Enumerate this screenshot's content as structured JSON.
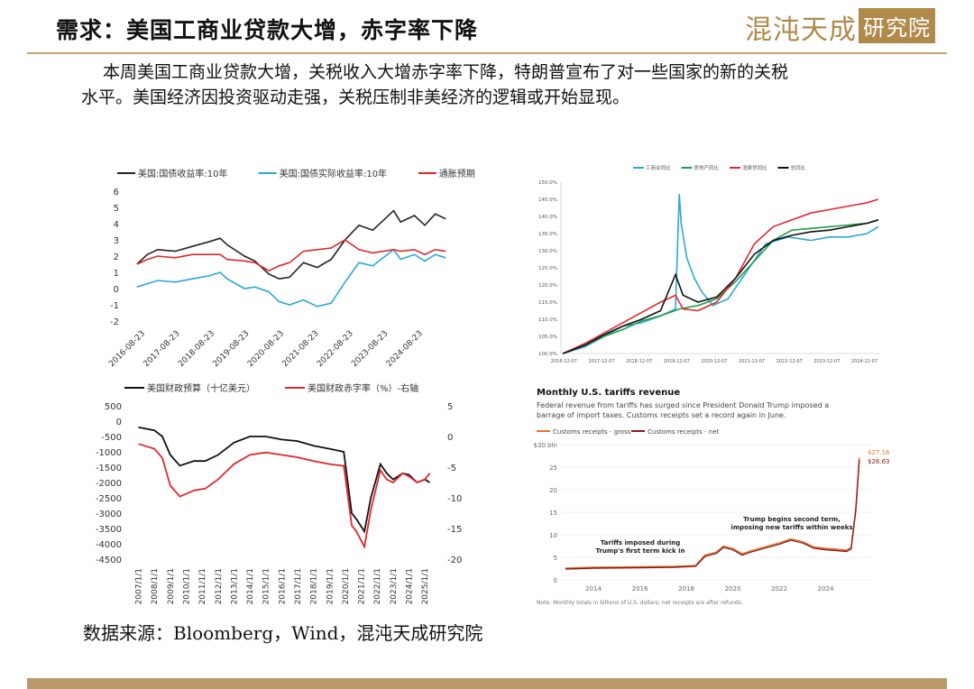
{
  "header": {
    "title": "需求：美国工商业贷款大增，赤字率下降",
    "logo_text": "混沌天成",
    "logo_box": "研究院"
  },
  "body": {
    "line1": "本周美国工商业贷款大增，关税收入大增赤字率下降，特朗普宣布了对一些国家的新的关税",
    "line2": "水平。美国经济因投资驱动走强，关税压制非美经济的逻辑或开始显现。"
  },
  "source": "数据来源：Bloomberg，Wind，混沌天成研究院",
  "colors": {
    "accent_gold": "#c4a46a",
    "footer": "#b99a6a"
  },
  "chart_data": [
    {
      "id": "yields",
      "type": "line",
      "legend": [
        "美国:国债收益率:10年",
        "美国:国债实际收益率:10年",
        "通胀预期"
      ],
      "colors": [
        "#222222",
        "#2aa7d8",
        "#e0282c"
      ],
      "x_ticks": [
        "2016-08-23",
        "2017-08-23",
        "2018-08-23",
        "2019-08-23",
        "2020-08-23",
        "2021-08-23",
        "2022-08-23",
        "2023-08-23",
        "2024-08-23"
      ],
      "y_ticks": [
        "6",
        "5",
        "4",
        "3",
        "2",
        "1",
        "0",
        "-1",
        "-2"
      ],
      "ylim": [
        -2,
        6
      ],
      "series": [
        {
          "name": "美国:国债收益率:10年",
          "x": [
            2016.4,
            2016.7,
            2017.0,
            2017.5,
            2018.0,
            2018.5,
            2018.8,
            2019.0,
            2019.5,
            2019.8,
            2020.2,
            2020.5,
            2020.8,
            2021.2,
            2021.6,
            2022.0,
            2022.4,
            2022.8,
            2023.2,
            2023.8,
            2024.0,
            2024.4,
            2024.7,
            2025.0,
            2025.3
          ],
          "y": [
            1.5,
            2.1,
            2.4,
            2.3,
            2.6,
            2.9,
            3.1,
            2.7,
            2.0,
            1.7,
            0.9,
            0.6,
            0.7,
            1.6,
            1.3,
            1.8,
            3.0,
            3.9,
            3.6,
            4.8,
            4.1,
            4.5,
            3.9,
            4.6,
            4.3
          ]
        },
        {
          "name": "美国:国债实际收益率:10年",
          "x": [
            2016.4,
            2016.7,
            2017.0,
            2017.5,
            2018.0,
            2018.5,
            2018.8,
            2019.0,
            2019.5,
            2019.8,
            2020.2,
            2020.5,
            2020.8,
            2021.2,
            2021.6,
            2022.0,
            2022.4,
            2022.8,
            2023.2,
            2023.8,
            2024.0,
            2024.4,
            2024.7,
            2025.0,
            2025.3
          ],
          "y": [
            0.1,
            0.3,
            0.5,
            0.4,
            0.6,
            0.8,
            1.0,
            0.6,
            0.0,
            0.1,
            -0.2,
            -0.8,
            -1.0,
            -0.7,
            -1.1,
            -0.9,
            0.4,
            1.6,
            1.4,
            2.4,
            1.8,
            2.1,
            1.7,
            2.1,
            1.9
          ]
        },
        {
          "name": "通胀预期",
          "x": [
            2016.4,
            2016.7,
            2017.0,
            2017.5,
            2018.0,
            2018.5,
            2018.8,
            2019.0,
            2019.5,
            2019.8,
            2020.2,
            2020.5,
            2020.8,
            2021.2,
            2021.6,
            2022.0,
            2022.4,
            2022.8,
            2023.2,
            2023.8,
            2024.0,
            2024.4,
            2024.7,
            2025.0,
            2025.3
          ],
          "y": [
            1.5,
            1.8,
            2.0,
            1.9,
            2.1,
            2.1,
            2.1,
            1.8,
            1.7,
            1.6,
            1.1,
            1.4,
            1.6,
            2.3,
            2.4,
            2.5,
            3.0,
            2.4,
            2.2,
            2.4,
            2.3,
            2.4,
            2.1,
            2.4,
            2.3
          ]
        }
      ]
    },
    {
      "id": "budget",
      "type": "line",
      "legend": [
        "美国财政预算（十亿美元）",
        "美国财政赤字率（%）-右轴"
      ],
      "colors": [
        "#111111",
        "#e0282c"
      ],
      "x_ticks": [
        "2007/1/1",
        "2008/1/1",
        "2009/1/1",
        "2010/1/1",
        "2011/1/1",
        "2012/1/1",
        "2013/1/1",
        "2014/1/1",
        "2015/1/1",
        "2016/1/1",
        "2017/1/1",
        "2018/1/1",
        "2019/1/1",
        "2020/1/1",
        "2021/1/1",
        "2022/1/1",
        "2023/1/1",
        "2024/1/1",
        "2025/1/1"
      ],
      "y_ticks": [
        "500",
        "0",
        "-500",
        "-1000",
        "-1500",
        "-2000",
        "-2500",
        "-3000",
        "-3500",
        "-4000",
        "-4500"
      ],
      "y2_ticks": [
        "5",
        "0",
        "-5",
        "-10",
        "-15",
        "-20"
      ],
      "ylim": [
        -4500,
        500
      ],
      "y2lim": [
        -20,
        5
      ],
      "series": [
        {
          "name": "美国财政预算（十亿美元）",
          "axis": "left",
          "x": [
            2007.0,
            2008.0,
            2008.5,
            2009.0,
            2009.6,
            2010.5,
            2011.2,
            2012.0,
            2013.0,
            2014.0,
            2015.0,
            2016.0,
            2017.0,
            2018.0,
            2019.0,
            2019.9,
            2020.4,
            2020.7,
            2021.2,
            2021.6,
            2022.2,
            2022.6,
            2023.0,
            2023.6,
            2024.0,
            2024.5,
            2025.0,
            2025.3
          ],
          "y": [
            -200,
            -300,
            -500,
            -1100,
            -1450,
            -1300,
            -1300,
            -1100,
            -700,
            -500,
            -500,
            -600,
            -650,
            -800,
            -900,
            -1000,
            -3000,
            -3200,
            -3600,
            -2500,
            -1400,
            -1700,
            -1900,
            -1700,
            -1750,
            -2000,
            -1900,
            -2000
          ]
        },
        {
          "name": "美国财政赤字率（%）-右轴",
          "axis": "right",
          "x": [
            2007.0,
            2008.0,
            2008.5,
            2009.0,
            2009.6,
            2010.5,
            2011.2,
            2012.0,
            2013.0,
            2014.0,
            2015.0,
            2016.0,
            2017.0,
            2018.0,
            2019.0,
            2019.9,
            2020.4,
            2020.7,
            2021.2,
            2021.6,
            2022.2,
            2022.6,
            2023.0,
            2023.6,
            2024.0,
            2024.5,
            2025.0,
            2025.3
          ],
          "y": [
            -1.2,
            -2.0,
            -3.5,
            -8.0,
            -9.8,
            -8.8,
            -8.5,
            -7.0,
            -4.5,
            -3.0,
            -2.6,
            -3.0,
            -3.4,
            -4.0,
            -4.5,
            -4.8,
            -14.5,
            -15.5,
            -18.0,
            -12.0,
            -5.5,
            -7.0,
            -7.5,
            -6.0,
            -6.5,
            -7.5,
            -7.0,
            -6.0
          ]
        }
      ]
    },
    {
      "id": "price_index",
      "type": "line",
      "legend": [
        "工商业同比",
        "房地产同比",
        "消费贷同比",
        "总同比"
      ],
      "colors": [
        "#2aa7d8",
        "#1f9e4a",
        "#e0282c",
        "#111111"
      ],
      "x_ticks": [
        "2016-12-07",
        "2017-12-07",
        "2018-12-07",
        "2019-12-07",
        "2020-12-07",
        "2021-12-07",
        "2022-12-07",
        "2023-12-07",
        "2024-12-07"
      ],
      "y_ticks": [
        "150.0%",
        "145.0%",
        "140.0%",
        "135.0%",
        "130.0%",
        "125.0%",
        "120.0%",
        "115.0%",
        "110.0%",
        "105.0%",
        "100.0%"
      ],
      "ylim": [
        100,
        150
      ],
      "series": [
        {
          "name": "工商业同比",
          "x": [
            2016.9,
            2017.5,
            2018.0,
            2018.5,
            2019.0,
            2019.5,
            2019.9,
            2020.0,
            2020.05,
            2020.2,
            2020.4,
            2020.6,
            2020.9,
            2021.3,
            2021.8,
            2022.3,
            2022.9,
            2023.5,
            2024.0,
            2024.5,
            2025.0,
            2025.3
          ],
          "y": [
            100,
            102,
            105,
            108,
            109,
            111,
            113,
            146.5,
            138,
            128,
            122,
            118,
            114,
            116,
            124,
            132,
            134,
            133,
            134,
            134,
            135,
            137
          ]
        },
        {
          "name": "房地产同比",
          "x": [
            2016.9,
            2017.5,
            2018.0,
            2018.5,
            2019.0,
            2019.5,
            2020.0,
            2020.5,
            2021.0,
            2021.5,
            2022.0,
            2022.5,
            2023.0,
            2023.5,
            2024.0,
            2024.5,
            2025.0,
            2025.3
          ],
          "y": [
            100,
            102.5,
            105,
            107,
            109.5,
            111,
            113,
            114,
            116,
            121,
            127,
            133,
            136,
            136.5,
            137,
            137.5,
            138,
            139
          ]
        },
        {
          "name": "消费贷同比",
          "x": [
            2016.9,
            2017.5,
            2018.0,
            2018.5,
            2019.0,
            2019.5,
            2019.9,
            2020.1,
            2020.5,
            2021.0,
            2021.5,
            2022.0,
            2022.5,
            2023.0,
            2023.5,
            2024.0,
            2024.5,
            2025.0,
            2025.3
          ],
          "y": [
            100,
            103,
            106,
            109,
            112,
            115,
            117,
            113,
            112.5,
            115,
            122,
            132,
            137,
            139,
            141,
            142,
            143,
            144,
            145
          ]
        },
        {
          "name": "总同比",
          "x": [
            2016.9,
            2017.5,
            2018.0,
            2018.5,
            2019.0,
            2019.5,
            2019.9,
            2020.1,
            2020.5,
            2021.0,
            2021.5,
            2022.0,
            2022.5,
            2023.0,
            2023.5,
            2024.0,
            2024.5,
            2025.0,
            2025.3
          ],
          "y": [
            100,
            102.5,
            105.5,
            108,
            110,
            112.5,
            123,
            117,
            115,
            116.5,
            122,
            129,
            133,
            134.5,
            135.5,
            136,
            137,
            138,
            139
          ]
        }
      ]
    },
    {
      "id": "tariffs",
      "type": "line",
      "title": "Monthly U.S. tariffs revenue",
      "subtitle": "Federal revenue from tariffs has surged since President Donald Trump imposed a barrage of import taxes. Customs receipts set a record again in June.",
      "legend": [
        "Customs receipts - gross",
        "Customs receipts - net"
      ],
      "colors": [
        "#e8742c",
        "#8b1a1a"
      ],
      "x_ticks": [
        "2014",
        "2016",
        "2018",
        "2020",
        "2022",
        "2024"
      ],
      "y_ticks": [
        "$30 bln",
        "25",
        "20",
        "15",
        "10",
        "5",
        "0"
      ],
      "ylim": [
        0,
        30
      ],
      "annotations": [
        "Tariffs imposed during Trump's first term kick in",
        "Trump begins second term, imposing new tariffs within weeks"
      ],
      "end_labels": [
        "$27.16",
        "$26.63"
      ],
      "note": "Note: Monthly totals in billions of U.S. dollars; net receipts are after refunds.",
      "series": [
        {
          "name": "Customs receipts - gross",
          "x": [
            2012.8,
            2014.0,
            2016.0,
            2017.5,
            2018.4,
            2018.8,
            2019.3,
            2019.6,
            2020.0,
            2020.4,
            2020.8,
            2021.5,
            2022.0,
            2022.5,
            2023.0,
            2023.5,
            2024.0,
            2024.5,
            2024.9,
            2025.1,
            2025.3,
            2025.45
          ],
          "y": [
            2.6,
            2.8,
            2.9,
            3.0,
            3.2,
            5.5,
            6.2,
            7.5,
            7.0,
            5.8,
            6.5,
            7.5,
            8.2,
            9.1,
            8.5,
            7.3,
            7.0,
            6.8,
            6.6,
            7.2,
            16.0,
            27.16
          ]
        },
        {
          "name": "Customs receipts - net",
          "x": [
            2012.8,
            2014.0,
            2016.0,
            2017.5,
            2018.4,
            2018.8,
            2019.3,
            2019.6,
            2020.0,
            2020.4,
            2020.8,
            2021.5,
            2022.0,
            2022.5,
            2023.0,
            2023.5,
            2024.0,
            2024.5,
            2024.9,
            2025.1,
            2025.3,
            2025.45
          ],
          "y": [
            2.4,
            2.6,
            2.7,
            2.8,
            3.0,
            5.2,
            5.9,
            7.2,
            6.7,
            5.5,
            6.2,
            7.2,
            7.9,
            8.8,
            8.2,
            7.0,
            6.7,
            6.5,
            6.3,
            6.9,
            15.5,
            26.63
          ]
        }
      ]
    }
  ]
}
